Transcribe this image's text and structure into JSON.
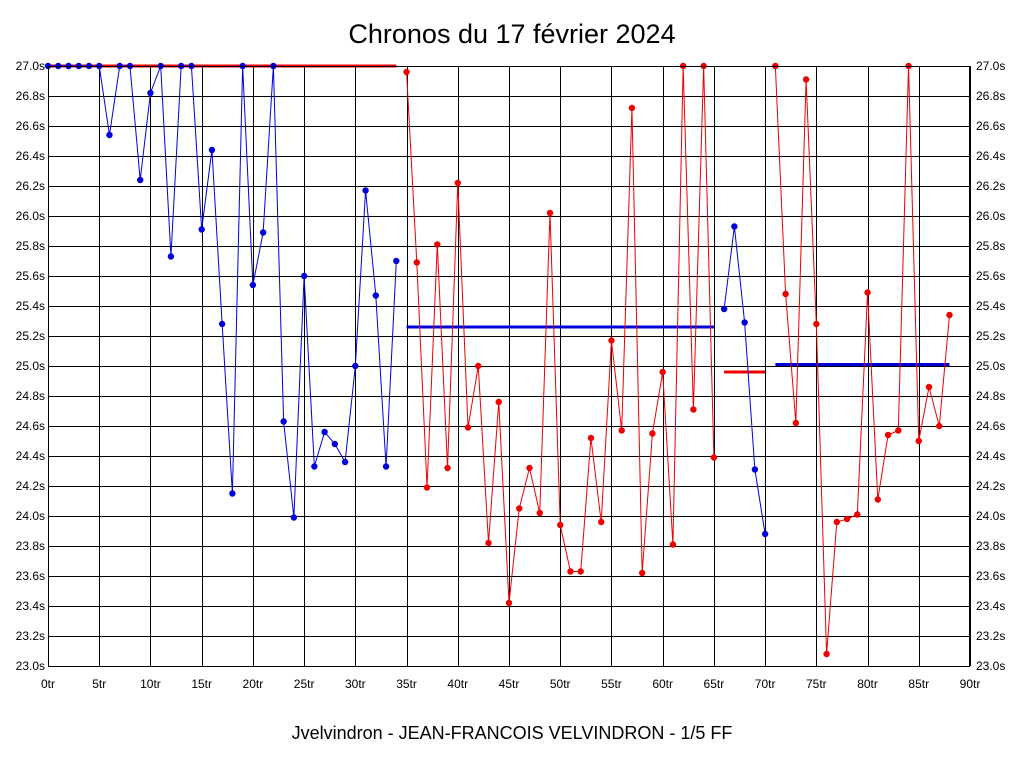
{
  "chart_data": {
    "type": "line",
    "title": "Chronos du 17 février 2024",
    "subtitle": "Jvelvindron - JEAN-FRANCOIS VELVINDRON - 1/5 FF",
    "xlabel": "",
    "ylabel": "",
    "xlim": [
      0,
      90
    ],
    "ylim": [
      23.0,
      27.0
    ],
    "grid": true,
    "x_ticks": [
      0,
      5,
      10,
      15,
      20,
      25,
      30,
      35,
      40,
      45,
      50,
      55,
      60,
      65,
      70,
      75,
      80,
      85,
      90
    ],
    "x_tick_labels": [
      "0tr",
      "5tr",
      "10tr",
      "15tr",
      "20tr",
      "25tr",
      "30tr",
      "35tr",
      "40tr",
      "45tr",
      "50tr",
      "55tr",
      "60tr",
      "65tr",
      "70tr",
      "75tr",
      "80tr",
      "85tr",
      "90tr"
    ],
    "y_ticks": [
      23.0,
      23.2,
      23.4,
      23.6,
      23.8,
      24.0,
      24.2,
      24.4,
      24.6,
      24.8,
      25.0,
      25.2,
      25.4,
      25.6,
      25.8,
      26.0,
      26.2,
      26.4,
      26.6,
      26.8,
      27.0
    ],
    "y_tick_labels": [
      "23.0s",
      "23.2s",
      "23.4s",
      "23.6s",
      "23.8s",
      "24.0s",
      "24.2s",
      "24.4s",
      "24.6s",
      "24.8s",
      "25.0s",
      "25.2s",
      "25.4s",
      "25.6s",
      "25.8s",
      "26.0s",
      "26.2s",
      "26.4s",
      "26.6s",
      "26.8s",
      "27.0s"
    ],
    "series": [
      {
        "color": "#0000dd",
        "x": [
          0,
          1,
          2,
          3,
          4,
          5,
          6,
          7,
          8,
          9,
          10,
          11,
          12,
          13,
          14,
          15,
          16,
          17,
          18,
          19,
          20,
          21,
          22,
          23,
          24,
          25,
          26,
          27,
          28,
          29,
          30,
          31,
          32,
          33,
          34
        ],
        "y": [
          27.0,
          27.0,
          27.0,
          27.0,
          27.0,
          27.0,
          26.54,
          27.0,
          27.0,
          26.24,
          26.82,
          27.0,
          25.73,
          27.0,
          27.0,
          25.91,
          26.44,
          25.28,
          24.15,
          27.0,
          25.54,
          25.89,
          27.0,
          24.63,
          23.99,
          25.6,
          24.33,
          24.56,
          24.48,
          24.36,
          25.0,
          26.17,
          25.47,
          24.33,
          25.7
        ]
      },
      {
        "color": "#ee0000",
        "x": [
          35,
          36,
          37,
          38,
          39,
          40,
          41,
          42,
          43,
          44,
          45,
          46,
          47,
          48,
          49,
          50,
          51,
          52,
          53,
          54,
          55,
          56,
          57,
          58,
          59,
          60,
          61,
          62,
          63,
          64,
          65
        ],
        "y": [
          26.96,
          25.69,
          24.19,
          25.81,
          24.32,
          26.22,
          24.59,
          25.0,
          23.82,
          24.76,
          23.42,
          24.05,
          24.32,
          24.02,
          26.02,
          23.94,
          23.63,
          23.63,
          24.52,
          23.96,
          25.17,
          24.57,
          26.72,
          23.62,
          24.55,
          24.96,
          23.81,
          27.0,
          24.71,
          27.0,
          24.39
        ]
      },
      {
        "color": "#0000dd",
        "x": [
          66,
          67,
          68,
          69,
          70
        ],
        "y": [
          25.38,
          25.93,
          25.29,
          24.31,
          23.88
        ]
      },
      {
        "color": "#ee0000",
        "x": [
          71,
          72,
          73,
          74,
          75,
          76,
          77,
          78,
          79,
          80,
          81,
          82,
          83,
          84,
          85,
          86,
          87,
          88
        ],
        "y": [
          27.0,
          25.48,
          24.62,
          26.91,
          25.28,
          23.08,
          23.96,
          23.98,
          24.01,
          25.49,
          24.11,
          24.54,
          24.57,
          27.0,
          24.5,
          24.86,
          24.6,
          25.34
        ]
      }
    ],
    "average_lines": [
      {
        "color": "#ee0000",
        "x": [
          0,
          34
        ],
        "y": 27.0
      },
      {
        "color": "#0000dd",
        "x": [
          35,
          65
        ],
        "y": 25.26
      },
      {
        "color": "#ee0000",
        "x": [
          66,
          70
        ],
        "y": 24.96
      },
      {
        "color": "#0000dd",
        "x": [
          71,
          88
        ],
        "y": 25.01
      }
    ]
  }
}
